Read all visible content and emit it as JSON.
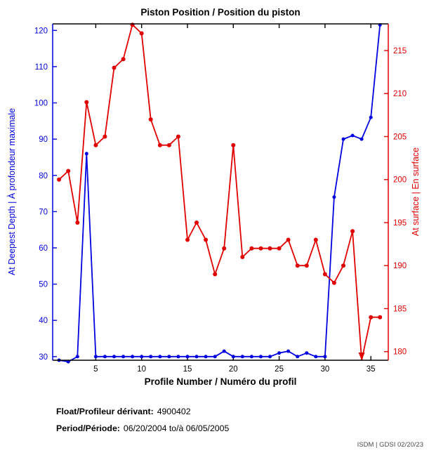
{
  "title": "Piston Position / Position du piston",
  "footer": {
    "float_label": "Float/Profileur dérivant:",
    "float_value": "4900402",
    "period_label": "Period/Période:",
    "period_value": "06/20/2004 to/à 06/05/2005",
    "credit": "ISDM | GDSI 02/20/23"
  },
  "chart_data": {
    "type": "line",
    "title": "Piston Position / Position du piston",
    "xlabel": "Profile Number / Numéro du profil",
    "x": [
      1,
      2,
      3,
      4,
      5,
      6,
      7,
      8,
      9,
      10,
      11,
      12,
      13,
      14,
      15,
      16,
      17,
      18,
      19,
      20,
      21,
      22,
      23,
      24,
      25,
      26,
      27,
      28,
      29,
      30,
      31,
      32,
      33,
      34,
      35,
      36
    ],
    "xlim": [
      0.3,
      36.9
    ],
    "xticks": [
      5,
      10,
      15,
      20,
      25,
      30,
      35
    ],
    "grid": false,
    "legend": "none",
    "left_axis": {
      "label": "At Deepest Depth | À profondeur maximale",
      "color": "#0000e0",
      "ticks": [
        30,
        40,
        50,
        60,
        70,
        80,
        90,
        100,
        110,
        120
      ],
      "ylim": [
        29,
        121.8
      ]
    },
    "right_axis": {
      "label": "At surface | En surface",
      "color": "#e00000",
      "ticks": [
        180,
        185,
        190,
        195,
        200,
        205,
        210,
        215
      ],
      "ylim": [
        179,
        218.1
      ]
    },
    "series": [
      {
        "name": "At Deepest Depth | À profondeur maximale",
        "axis": "left",
        "color": "#0000e0",
        "marker": "circle",
        "values": [
          29,
          28.6,
          30,
          86,
          30,
          30,
          30,
          30,
          30,
          30,
          30,
          30,
          30,
          30,
          30,
          30,
          30,
          30,
          31.5,
          30,
          30,
          30,
          30,
          30,
          31,
          31.5,
          30,
          31,
          30,
          30,
          74,
          90,
          91,
          90,
          96,
          121.5
        ]
      },
      {
        "name": "At surface | En surface",
        "axis": "right",
        "color": "#e00000",
        "marker": "circle",
        "values": [
          200,
          201,
          195,
          209,
          204,
          205,
          213,
          214,
          218,
          217,
          207,
          204,
          204,
          205,
          193,
          195,
          193,
          189,
          192,
          204,
          191,
          192,
          192,
          192,
          192,
          193,
          190,
          190,
          193,
          189,
          188,
          190,
          194,
          179,
          184,
          184
        ]
      }
    ],
    "annotations": [
      {
        "series": "At surface | En surface",
        "x": 34,
        "type": "arrow-down",
        "meaning": "value at/below right-axis minimum, clipped at axis bottom"
      }
    ]
  }
}
